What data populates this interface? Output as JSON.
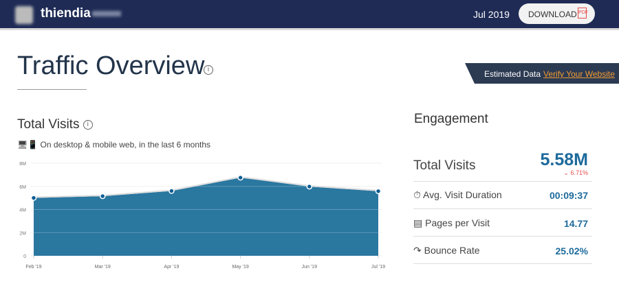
{
  "header": {
    "brand": "thiendia",
    "month": "Jul 2019",
    "download_label": "DOWNLOAD",
    "pdf_icon": "PDF"
  },
  "page": {
    "title": "Traffic Overview",
    "estimated": "Estimated Data",
    "verify_link": "Verify Your Website",
    "info": "i"
  },
  "visits": {
    "title": "Total Visits",
    "subtitle": "On desktop & mobile web, in the last 6 months"
  },
  "engagement": {
    "title": "Engagement",
    "total": {
      "label": "Total Visits",
      "value": "5.58M",
      "change": "6.71%"
    },
    "metrics": [
      {
        "label": "Avg. Visit Duration",
        "value": "00:09:37",
        "icon": "stopwatch"
      },
      {
        "label": "Pages per Visit",
        "value": "14.77",
        "icon": "pages"
      },
      {
        "label": "Bounce Rate",
        "value": "25.02%",
        "icon": "bounce-arrow"
      }
    ]
  },
  "colors": {
    "fill": "#2a77a0",
    "point": "#0f5e95",
    "accent": "#1d6a9c",
    "negative": "#e84c4c"
  },
  "chart_data": {
    "type": "area",
    "categories": [
      "Feb '19",
      "Mar '19",
      "Apr '19",
      "May '19",
      "Jun '19",
      "Jul '19"
    ],
    "values": [
      5.0,
      5.15,
      5.6,
      6.75,
      5.98,
      5.58
    ],
    "unit": "M",
    "ylim": [
      0,
      8
    ],
    "yticks": [
      "0",
      "2M",
      "4M",
      "6M",
      "8M"
    ],
    "ytick_values": [
      0,
      2,
      4,
      6,
      8
    ],
    "grid": true
  }
}
